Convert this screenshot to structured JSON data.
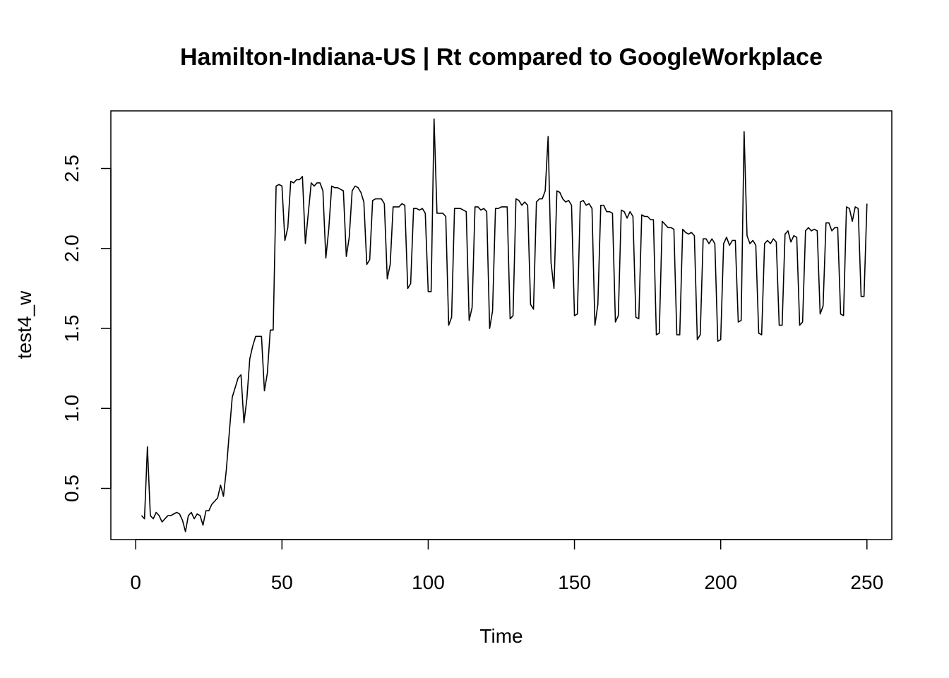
{
  "chart_data": {
    "type": "line",
    "title": "Hamilton-Indiana-US | Rt compared to GoogleWorkplace",
    "xlabel": "Time",
    "ylabel": "test4_w",
    "x_ticks": [
      "0",
      "50",
      "100",
      "150",
      "200",
      "250"
    ],
    "y_ticks": [
      "0.5",
      "1.0",
      "1.5",
      "2.0",
      "2.5"
    ],
    "xlim": [
      -8.5,
      258.5
    ],
    "ylim": [
      0.18,
      2.86
    ],
    "grid": false,
    "legend": "none",
    "colors": {
      "line": "#000000",
      "box": "#000000",
      "background": "#ffffff"
    },
    "series": [
      {
        "x_start": 2,
        "values": [
          0.33,
          0.31,
          0.76,
          0.33,
          0.31,
          0.35,
          0.33,
          0.29,
          0.31,
          0.33,
          0.33,
          0.34,
          0.35,
          0.34,
          0.3,
          0.23,
          0.33,
          0.35,
          0.31,
          0.34,
          0.33,
          0.27,
          0.36,
          0.36,
          0.4,
          0.42,
          0.44,
          0.52,
          0.45,
          0.62,
          0.85,
          1.07,
          1.13,
          1.19,
          1.21,
          0.91,
          1.06,
          1.31,
          1.39,
          1.45,
          1.45,
          1.45,
          1.11,
          1.22,
          1.49,
          1.49,
          2.39,
          2.4,
          2.39,
          2.05,
          2.13,
          2.42,
          2.41,
          2.43,
          2.43,
          2.45,
          2.03,
          2.22,
          2.41,
          2.39,
          2.41,
          2.41,
          2.36,
          1.94,
          2.12,
          2.39,
          2.38,
          2.38,
          2.37,
          2.36,
          1.95,
          2.07,
          2.36,
          2.39,
          2.38,
          2.35,
          2.29,
          1.9,
          1.93,
          2.3,
          2.31,
          2.31,
          2.31,
          2.28,
          1.81,
          1.9,
          2.26,
          2.26,
          2.26,
          2.28,
          2.27,
          1.75,
          1.78,
          2.25,
          2.25,
          2.24,
          2.25,
          2.22,
          1.73,
          1.73,
          2.81,
          2.22,
          2.22,
          2.22,
          2.2,
          1.52,
          1.57,
          2.25,
          2.25,
          2.25,
          2.24,
          2.23,
          1.55,
          1.63,
          2.26,
          2.26,
          2.24,
          2.25,
          2.23,
          1.5,
          1.61,
          2.25,
          2.25,
          2.26,
          2.26,
          2.26,
          1.56,
          1.58,
          2.31,
          2.3,
          2.27,
          2.29,
          2.27,
          1.65,
          1.62,
          2.29,
          2.31,
          2.31,
          2.36,
          2.7,
          1.91,
          1.75,
          2.36,
          2.35,
          2.31,
          2.29,
          2.3,
          2.27,
          1.58,
          1.59,
          2.29,
          2.3,
          2.27,
          2.28,
          2.25,
          1.52,
          1.65,
          2.27,
          2.27,
          2.23,
          2.23,
          2.22,
          1.54,
          1.58,
          2.24,
          2.23,
          2.19,
          2.23,
          2.2,
          1.57,
          1.56,
          2.21,
          2.2,
          2.2,
          2.18,
          2.18,
          1.46,
          1.47,
          2.17,
          2.15,
          2.13,
          2.13,
          2.12,
          1.46,
          1.46,
          2.12,
          2.1,
          2.09,
          2.1,
          2.08,
          1.43,
          1.46,
          2.06,
          2.06,
          2.03,
          2.06,
          2.03,
          1.42,
          1.43,
          2.03,
          2.07,
          2.02,
          2.05,
          2.05,
          1.54,
          1.55,
          2.73,
          2.08,
          2.03,
          2.05,
          2.02,
          1.47,
          1.46,
          2.03,
          2.05,
          2.03,
          2.06,
          2.04,
          1.52,
          1.52,
          2.09,
          2.11,
          2.04,
          2.08,
          2.07,
          1.52,
          1.54,
          2.11,
          2.13,
          2.11,
          2.12,
          2.11,
          1.59,
          1.64,
          2.16,
          2.16,
          2.11,
          2.13,
          2.13,
          1.59,
          1.58,
          2.26,
          2.25,
          2.17,
          2.26,
          2.25,
          1.7,
          1.7,
          2.28
        ]
      }
    ]
  }
}
